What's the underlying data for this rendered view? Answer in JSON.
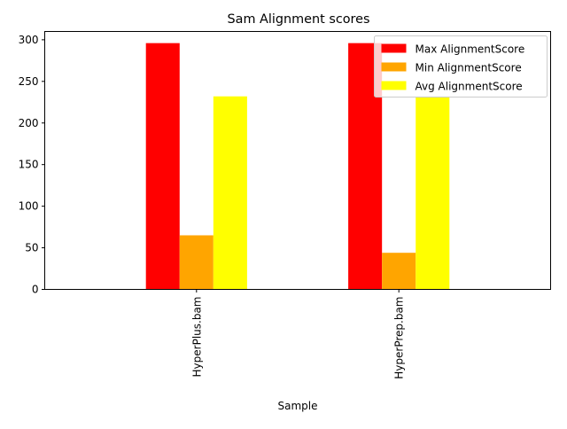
{
  "chart_data": {
    "type": "bar",
    "title": "Sam Alignment scores",
    "xlabel": "Sample",
    "ylabel": "",
    "categories": [
      "HyperPlus.bam",
      "HyperPrep.bam"
    ],
    "ylim": [
      0,
      310
    ],
    "yticks": [
      0,
      50,
      100,
      150,
      200,
      250,
      300
    ],
    "legend_position": "top-right",
    "grid": false,
    "series": [
      {
        "name": "Max AlignmentScore",
        "color": "#ff0000",
        "values": [
          296,
          296
        ]
      },
      {
        "name": "Min AlignmentScore",
        "color": "#ffa500",
        "values": [
          65,
          44
        ]
      },
      {
        "name": "Avg AlignmentScore",
        "color": "#ffff00",
        "values": [
          232,
          232
        ]
      }
    ]
  }
}
